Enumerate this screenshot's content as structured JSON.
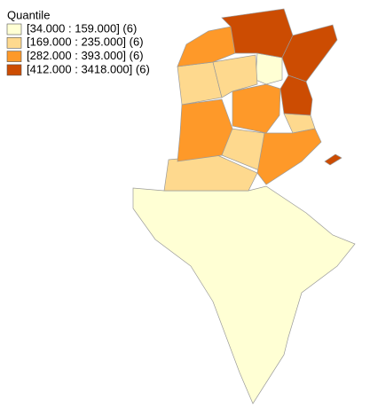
{
  "legend": {
    "title": "Quantile",
    "items": [
      {
        "label": "[34.000 : 159.000] (6)",
        "color": "#ffffd4"
      },
      {
        "label": "[169.000 : 235.000] (6)",
        "color": "#fed98e"
      },
      {
        "label": "[282.000 : 393.000] (6)",
        "color": "#fe9929"
      },
      {
        "label": "[412.000 : 3418.000] (6)",
        "color": "#cc4c02"
      }
    ]
  }
}
